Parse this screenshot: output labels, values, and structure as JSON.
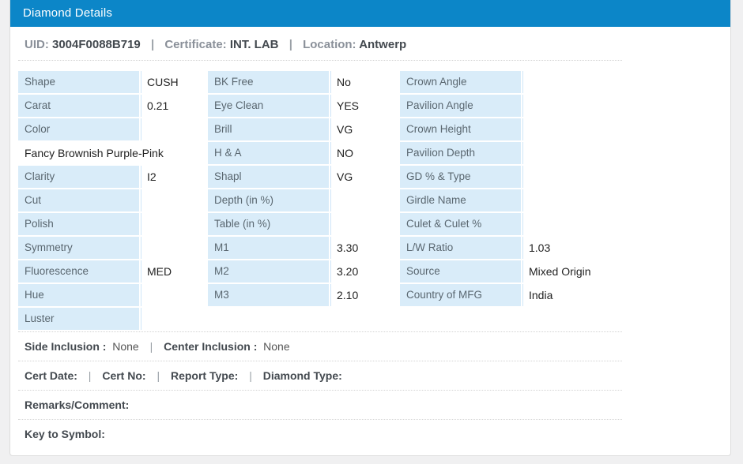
{
  "header": {
    "title": "Diamond Details"
  },
  "summary": {
    "uid_label": "UID:",
    "uid_value": "3004F0088B719",
    "separator": "|",
    "certificate_label": "Certificate:",
    "certificate_value": "INT. LAB",
    "location_label": "Location:",
    "location_value": "Antwerp"
  },
  "table": {
    "columns": [
      {
        "rows": [
          {
            "label": "Shape",
            "value": "CUSH"
          },
          {
            "label": "Carat",
            "value": "0.21"
          },
          {
            "label": "Color",
            "value": ""
          },
          {
            "type": "span",
            "text": "Fancy Brownish Purple-Pink"
          },
          {
            "label": "Clarity",
            "value": "I2"
          },
          {
            "label": "Cut",
            "value": ""
          },
          {
            "label": "Polish",
            "value": ""
          },
          {
            "label": "Symmetry",
            "value": ""
          },
          {
            "label": "Fluorescence",
            "value": "MED"
          },
          {
            "label": "Hue",
            "value": ""
          },
          {
            "label": "Luster",
            "value": ""
          }
        ]
      },
      {
        "rows": [
          {
            "label": "BK Free",
            "value": "No"
          },
          {
            "label": "Eye Clean",
            "value": "YES"
          },
          {
            "label": "Brill",
            "value": "VG"
          },
          {
            "label": "H & A",
            "value": "NO"
          },
          {
            "label": "Shapl",
            "value": "VG"
          },
          {
            "label": "Depth (in %)",
            "value": ""
          },
          {
            "label": "Table (in %)",
            "value": ""
          },
          {
            "label": "M1",
            "value": "3.30"
          },
          {
            "label": "M2",
            "value": "3.20"
          },
          {
            "label": "M3",
            "value": "2.10"
          }
        ]
      },
      {
        "rows": [
          {
            "label": "Crown Angle",
            "value": ""
          },
          {
            "label": "Pavilion Angle",
            "value": ""
          },
          {
            "label": "Crown Height",
            "value": ""
          },
          {
            "label": "Pavilion Depth",
            "value": ""
          },
          {
            "label": "GD % & Type",
            "value": ""
          },
          {
            "label": "Girdle Name",
            "value": ""
          },
          {
            "label": "Culet & Culet %",
            "value": ""
          },
          {
            "label": "L/W Ratio",
            "value": "1.03"
          },
          {
            "label": "Source",
            "value": "Mixed Origin"
          },
          {
            "label": "Country of MFG",
            "value": "India"
          }
        ]
      }
    ]
  },
  "sections": {
    "inclusion": {
      "side_label": "Side Inclusion :",
      "side_value": "None",
      "separator": "|",
      "center_label": "Center Inclusion :",
      "center_value": "None"
    },
    "certificate": {
      "cert_date_label": "Cert Date:",
      "cert_no_label": "Cert No:",
      "report_type_label": "Report Type:",
      "diamond_type_label": "Diamond Type:",
      "separator": "|"
    },
    "remarks_label": "Remarks/Comment:",
    "key_to_symbol_label": "Key to Symbol:"
  },
  "colors": {
    "header_bg": "#0c86c8",
    "cell_bg": "#d9ecf9",
    "cell_border": "#cfe6f8",
    "label_text": "#5a6770",
    "value_text": "#222222"
  }
}
